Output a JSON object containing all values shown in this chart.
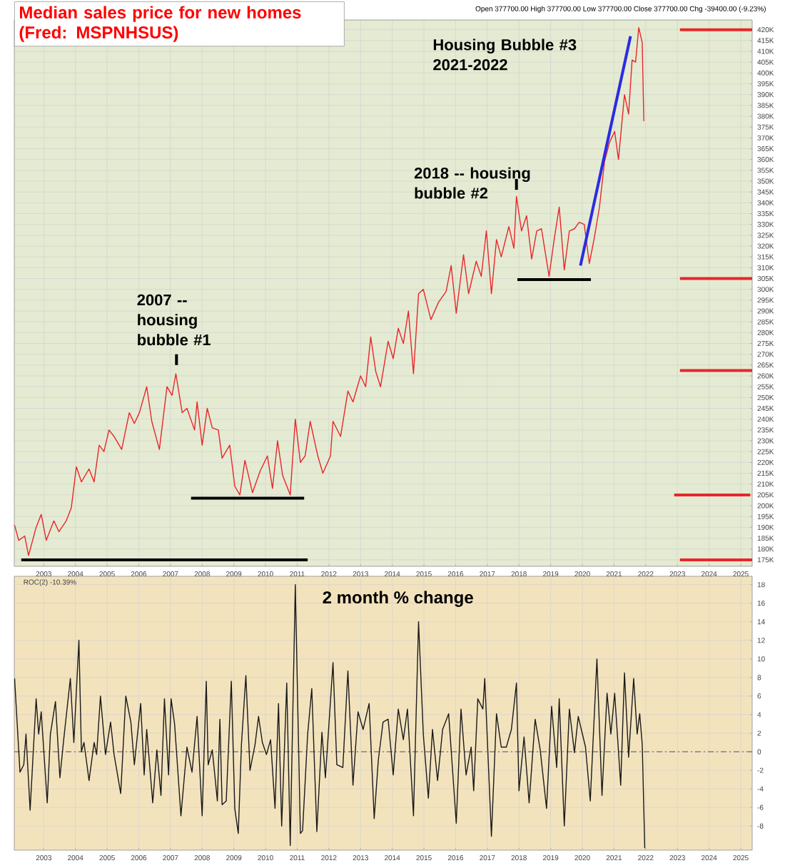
{
  "chart_data": [
    {
      "type": "line",
      "title": "Median sales price for new homes (Fred: MSPNHSUS)",
      "xlim": [
        2002.07,
        2025.36
      ],
      "ylim": [
        172000,
        424500
      ],
      "grid": true,
      "xticks": [
        2003,
        2004,
        2005,
        2006,
        2007,
        2008,
        2009,
        2010,
        2011,
        2012,
        2013,
        2014,
        2015,
        2016,
        2017,
        2018,
        2019,
        2020,
        2021,
        2022,
        2023,
        2024,
        2025
      ],
      "yticks": [
        {
          "value": 175000,
          "label": "175K"
        },
        {
          "value": 180000,
          "label": "180K"
        },
        {
          "value": 185000,
          "label": "185K"
        },
        {
          "value": 190000,
          "label": "190K"
        },
        {
          "value": 195000,
          "label": "195K"
        },
        {
          "value": 200000,
          "label": "200K"
        },
        {
          "value": 205000,
          "label": "205K"
        },
        {
          "value": 210000,
          "label": "210K"
        },
        {
          "value": 215000,
          "label": "215K"
        },
        {
          "value": 220000,
          "label": "220K"
        },
        {
          "value": 225000,
          "label": "225K"
        },
        {
          "value": 230000,
          "label": "230K"
        },
        {
          "value": 235000,
          "label": "235K"
        },
        {
          "value": 240000,
          "label": "240K"
        },
        {
          "value": 245000,
          "label": "245K"
        },
        {
          "value": 250000,
          "label": "250K"
        },
        {
          "value": 255000,
          "label": "255K"
        },
        {
          "value": 260000,
          "label": "260K"
        },
        {
          "value": 265000,
          "label": "265K"
        },
        {
          "value": 270000,
          "label": "270K"
        },
        {
          "value": 275000,
          "label": "275K"
        },
        {
          "value": 280000,
          "label": "280K"
        },
        {
          "value": 285000,
          "label": "285K"
        },
        {
          "value": 290000,
          "label": "290K"
        },
        {
          "value": 295000,
          "label": "295K"
        },
        {
          "value": 300000,
          "label": "300K"
        },
        {
          "value": 305000,
          "label": "305K"
        },
        {
          "value": 310000,
          "label": "310K"
        },
        {
          "value": 315000,
          "label": "315K"
        },
        {
          "value": 320000,
          "label": "320K"
        },
        {
          "value": 325000,
          "label": "325K"
        },
        {
          "value": 330000,
          "label": "330K"
        },
        {
          "value": 335000,
          "label": "335K"
        },
        {
          "value": 340000,
          "label": "340K"
        },
        {
          "value": 345000,
          "label": "345K"
        },
        {
          "value": 350000,
          "label": "350K"
        },
        {
          "value": 355000,
          "label": "355K"
        },
        {
          "value": 360000,
          "label": "360K"
        },
        {
          "value": 365000,
          "label": "365K"
        },
        {
          "value": 370000,
          "label": "370K"
        },
        {
          "value": 375000,
          "label": "375K"
        },
        {
          "value": 380000,
          "label": "380K"
        },
        {
          "value": 385000,
          "label": "385K"
        },
        {
          "value": 390000,
          "label": "390K"
        },
        {
          "value": 395000,
          "label": "395K"
        },
        {
          "value": 400000,
          "label": "400K"
        },
        {
          "value": 405000,
          "label": "405K"
        },
        {
          "value": 410000,
          "label": "410K"
        },
        {
          "value": 415000,
          "label": "415K"
        },
        {
          "value": 420000,
          "label": "420K"
        }
      ],
      "series": [
        {
          "color": "#e8262b",
          "x": [
            2002.08,
            2002.21,
            2002.4,
            2002.52,
            2002.76,
            2002.92,
            2003.08,
            2003.32,
            2003.48,
            2003.71,
            2003.87,
            2004.03,
            2004.19,
            2004.43,
            2004.59,
            2004.75,
            2004.9,
            2005.06,
            2005.22,
            2005.46,
            2005.7,
            2005.86,
            2006.02,
            2006.25,
            2006.41,
            2006.65,
            2006.89,
            2007.05,
            2007.17,
            2007.37,
            2007.52,
            2007.76,
            2007.84,
            2008.0,
            2008.16,
            2008.32,
            2008.51,
            2008.63,
            2008.87,
            2009.03,
            2009.19,
            2009.35,
            2009.59,
            2009.83,
            2010.06,
            2010.22,
            2010.38,
            2010.54,
            2010.78,
            2010.94,
            2011.1,
            2011.25,
            2011.41,
            2011.65,
            2011.81,
            2012.05,
            2012.13,
            2012.37,
            2012.6,
            2012.76,
            2013.0,
            2013.16,
            2013.32,
            2013.48,
            2013.63,
            2013.87,
            2014.03,
            2014.19,
            2014.35,
            2014.51,
            2014.67,
            2014.83,
            2014.98,
            2015.22,
            2015.46,
            2015.7,
            2015.86,
            2016.02,
            2016.25,
            2016.41,
            2016.65,
            2016.81,
            2016.97,
            2017.13,
            2017.29,
            2017.44,
            2017.68,
            2017.84,
            2017.92,
            2018.08,
            2018.24,
            2018.4,
            2018.56,
            2018.71,
            2018.95,
            2019.11,
            2019.27,
            2019.43,
            2019.59,
            2019.75,
            2019.9,
            2020.06,
            2020.22,
            2020.38,
            2020.54,
            2020.7,
            2020.86,
            2021.02,
            2021.14,
            2021.33,
            2021.46,
            2021.57,
            2021.68,
            2021.78,
            2021.89,
            2021.94
          ],
          "values": [
            191000,
            184000,
            186000,
            177000,
            190000,
            196000,
            184000,
            193000,
            188000,
            193000,
            199000,
            218000,
            211000,
            217000,
            211000,
            228000,
            225000,
            235000,
            232000,
            226000,
            243000,
            238000,
            243000,
            255000,
            239000,
            226000,
            255000,
            251000,
            261000,
            243000,
            245000,
            235000,
            248000,
            228000,
            245000,
            236000,
            235000,
            222000,
            228000,
            209000,
            205000,
            221000,
            206000,
            216000,
            223000,
            208000,
            230000,
            214000,
            205000,
            240000,
            220000,
            223000,
            239000,
            223000,
            215000,
            223000,
            239000,
            232000,
            253000,
            248000,
            260000,
            255000,
            278000,
            262000,
            255000,
            276000,
            268000,
            282000,
            275000,
            290000,
            261000,
            298000,
            300000,
            286000,
            294000,
            299000,
            311000,
            289000,
            316000,
            298000,
            313000,
            306000,
            327000,
            298000,
            323000,
            315000,
            329000,
            319000,
            343000,
            327000,
            334000,
            314000,
            327000,
            328000,
            306000,
            323000,
            338000,
            309000,
            327000,
            328000,
            331000,
            330000,
            312000,
            324000,
            338000,
            359000,
            368000,
            373000,
            360000,
            390000,
            381000,
            406000,
            405000,
            421000,
            414000,
            377700
          ]
        },
        {
          "color": "#000000",
          "x": [
            2002.29,
            2011.33
          ],
          "values": [
            175000,
            175000
          ]
        },
        {
          "color": "#000000",
          "x": [
            2007.65,
            2011.22
          ],
          "values": [
            203500,
            203500
          ]
        },
        {
          "color": "#000000",
          "x": [
            2017.95,
            2020.27
          ],
          "values": [
            304500,
            304500
          ]
        },
        {
          "color": "#000000",
          "x": [
            2007.19,
            2007.19
          ],
          "values": [
            265000,
            270000
          ]
        },
        {
          "color": "#000000",
          "x": [
            2017.92,
            2017.92
          ],
          "values": [
            346000,
            351000
          ]
        },
        {
          "color": "#2b2be0",
          "x": [
            2019.94,
            2021.52
          ],
          "values": [
            311000,
            417000
          ]
        },
        {
          "color": "#e8262b",
          "x": [
            2023.08,
            2025.36
          ],
          "values": [
            420000,
            420000
          ]
        },
        {
          "color": "#e8262b",
          "x": [
            2023.08,
            2025.36
          ],
          "values": [
            305000,
            305000
          ]
        },
        {
          "color": "#e8262b",
          "x": [
            2023.08,
            2025.36
          ],
          "values": [
            262500,
            262500
          ]
        },
        {
          "color": "#e8262b",
          "x": [
            2022.9,
            2025.3
          ],
          "values": [
            205000,
            205000
          ]
        },
        {
          "color": "#e8262b",
          "x": [
            2023.08,
            2025.36
          ],
          "values": [
            175000,
            175000
          ]
        }
      ],
      "annotations": [
        "Open 377700.00 High 377700.00 Low 377700.00 Close 377700.00 Chg -39400.00 (-9.23%)",
        {
          "text": "2007 -- housing bubble #1",
          "x": 2007.19,
          "y": 270000
        },
        {
          "text": "2018 -- housing bubble #2",
          "x": 2017.92,
          "y": 351000
        },
        "Housing Bubble #3 2021-2022"
      ]
    },
    {
      "type": "line",
      "title": "2 month % change",
      "xlim": [
        2002.07,
        2025.36
      ],
      "ylim": [
        -10.6,
        18.9
      ],
      "grid": true,
      "xticks": [
        2003,
        2004,
        2005,
        2006,
        2007,
        2008,
        2009,
        2010,
        2011,
        2012,
        2013,
        2014,
        2015,
        2016,
        2017,
        2018,
        2019,
        2020,
        2021,
        2022,
        2023,
        2024,
        2025
      ],
      "yticks": [
        -8,
        -6,
        -4,
        -2,
        0,
        2,
        4,
        6,
        8,
        10,
        12,
        14,
        16,
        18
      ],
      "ref_lines": [
        {
          "axis": "y",
          "value": 0,
          "color": "#555555",
          "line_style": "dashed"
        }
      ],
      "series": [
        {
          "color": "#1a1a1a",
          "x": [
            2002.08,
            2002.25,
            2002.37,
            2002.44,
            2002.57,
            2002.76,
            2002.84,
            2002.92,
            2003.11,
            2003.21,
            2003.37,
            2003.51,
            2003.63,
            2003.84,
            2003.95,
            2004.11,
            2004.19,
            2004.27,
            2004.43,
            2004.59,
            2004.67,
            2004.79,
            2004.95,
            2005.11,
            2005.22,
            2005.43,
            2005.59,
            2005.75,
            2005.86,
            2006.06,
            2006.17,
            2006.25,
            2006.44,
            2006.57,
            2006.7,
            2006.81,
            2006.94,
            2007.02,
            2007.13,
            2007.33,
            2007.52,
            2007.68,
            2007.84,
            2008.0,
            2008.13,
            2008.19,
            2008.32,
            2008.48,
            2008.56,
            2008.63,
            2008.76,
            2008.92,
            2009.03,
            2009.14,
            2009.24,
            2009.38,
            2009.51,
            2009.67,
            2009.78,
            2009.9,
            2010.03,
            2010.16,
            2010.3,
            2010.41,
            2010.51,
            2010.67,
            2010.78,
            2010.94,
            2011.1,
            2011.17,
            2011.33,
            2011.46,
            2011.62,
            2011.78,
            2011.89,
            2012.13,
            2012.25,
            2012.44,
            2012.6,
            2012.76,
            2012.92,
            2013.08,
            2013.27,
            2013.43,
            2013.56,
            2013.71,
            2013.87,
            2014.03,
            2014.19,
            2014.35,
            2014.48,
            2014.67,
            2014.83,
            2014.98,
            2015.14,
            2015.27,
            2015.43,
            2015.59,
            2015.78,
            2016.02,
            2016.17,
            2016.33,
            2016.49,
            2016.57,
            2016.7,
            2016.86,
            2016.92,
            2017.13,
            2017.29,
            2017.44,
            2017.6,
            2017.76,
            2017.92,
            2018.0,
            2018.16,
            2018.32,
            2018.51,
            2018.67,
            2018.87,
            2019.03,
            2019.19,
            2019.27,
            2019.43,
            2019.59,
            2019.75,
            2019.87,
            2020.1,
            2020.25,
            2020.46,
            2020.62,
            2020.78,
            2020.9,
            2021.02,
            2021.21,
            2021.33,
            2021.46,
            2021.62,
            2021.73,
            2021.81,
            2021.89,
            2021.97
          ],
          "values": [
            7.9,
            -2.2,
            -1.4,
            1.9,
            -6.3,
            5.7,
            1.9,
            4.3,
            -5.5,
            1.9,
            5.4,
            -2.8,
            1.3,
            7.9,
            1.0,
            12.0,
            0.0,
            1.0,
            -3.1,
            1.0,
            -0.3,
            6.0,
            -0.3,
            3.2,
            -0.3,
            -4.5,
            6.0,
            3.2,
            -1.4,
            5.2,
            -2.5,
            2.4,
            -5.5,
            0.2,
            -4.7,
            5.7,
            -2.5,
            5.7,
            3.0,
            -6.9,
            0.5,
            -2.2,
            3.8,
            -6.9,
            7.6,
            -1.4,
            0.2,
            -5.3,
            3.5,
            -5.7,
            -5.3,
            7.6,
            -6.1,
            -8.8,
            0.8,
            8.2,
            -2.0,
            0.8,
            3.8,
            1.0,
            -0.3,
            1.3,
            -6.1,
            5.2,
            -8.0,
            7.4,
            -10.1,
            18.0,
            -8.8,
            -8.5,
            1.9,
            6.8,
            -8.6,
            2.1,
            -2.8,
            9.6,
            -1.4,
            -1.7,
            8.7,
            -3.6,
            4.3,
            2.4,
            5.2,
            -7.2,
            -0.9,
            3.2,
            3.5,
            -2.5,
            4.6,
            1.3,
            4.6,
            -6.9,
            14.0,
            1.9,
            -5.0,
            2.4,
            -3.1,
            2.4,
            4.1,
            -7.7,
            4.6,
            -2.5,
            0.5,
            -4.2,
            5.7,
            4.6,
            7.9,
            -9.1,
            4.1,
            0.5,
            0.5,
            2.4,
            7.4,
            -4.2,
            1.6,
            -5.5,
            3.5,
            0.2,
            -6.1,
            4.9,
            -1.7,
            5.7,
            -8.0,
            4.6,
            -0.1,
            3.8,
            0.5,
            -5.3,
            10.0,
            -4.7,
            6.3,
            1.9,
            6.3,
            -3.6,
            8.5,
            -0.6,
            7.9,
            1.9,
            4.1,
            0.8,
            -10.39
          ]
        }
      ],
      "annotations": [
        "ROC(2) -10.39%"
      ]
    }
  ]
}
